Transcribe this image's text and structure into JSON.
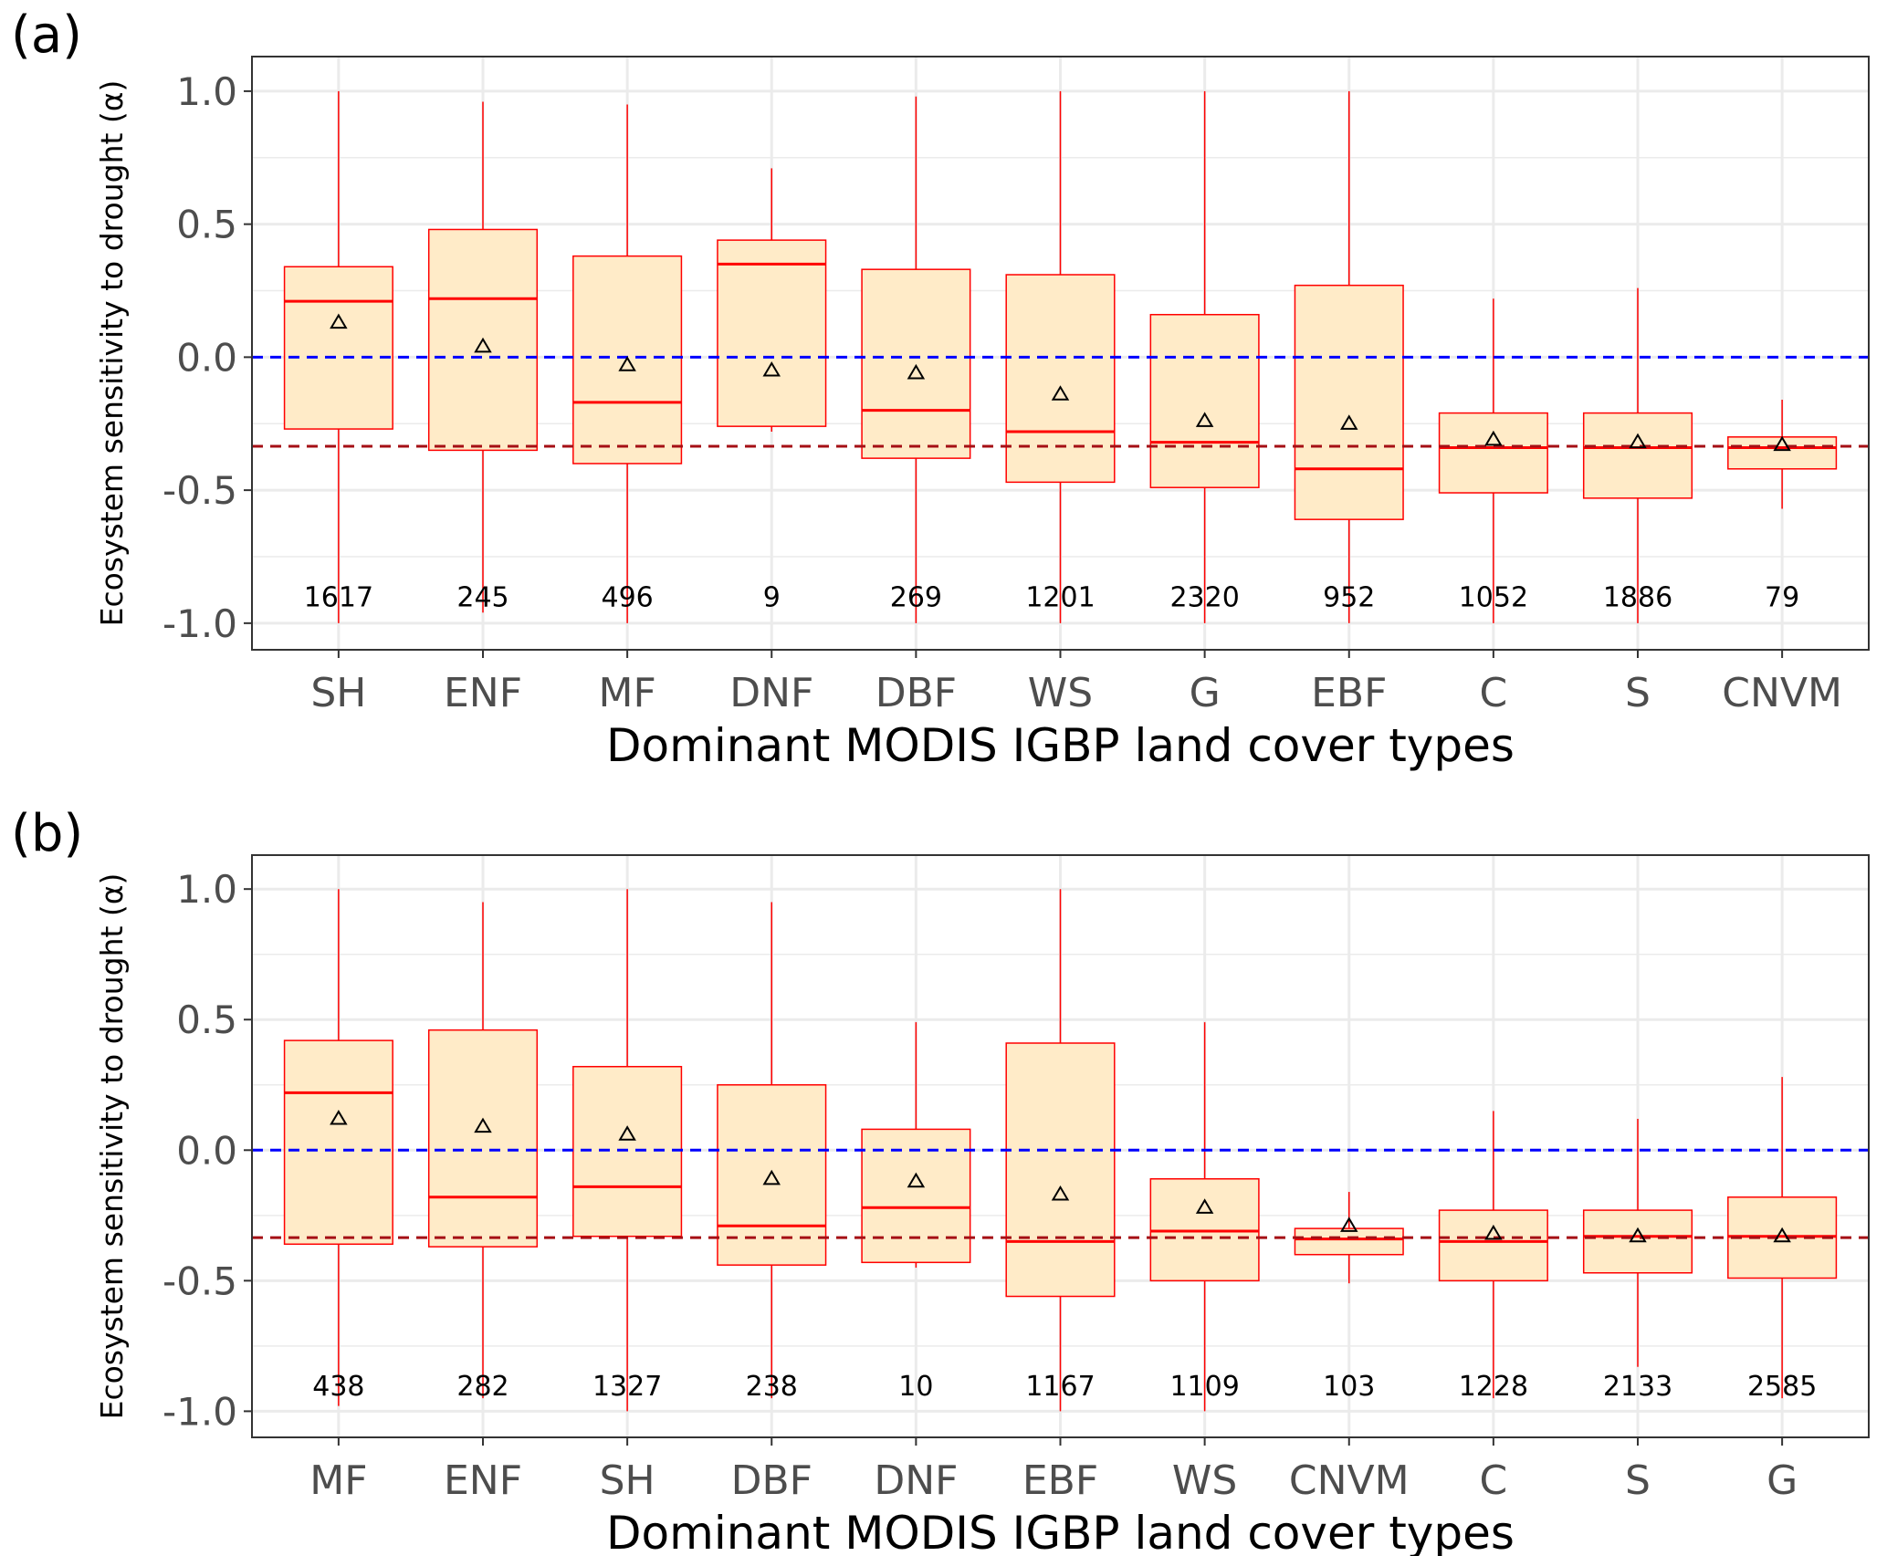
{
  "chart_data": [
    {
      "type": "box",
      "panel_label": "(a)",
      "xlabel": "Dominant MODIS IGBP land cover types",
      "ylabel": "Ecosystem sensitivity to drought (α)",
      "ylim": [
        -1.1,
        1.13
      ],
      "yticks": [
        1.0,
        0.5,
        0.0,
        -0.5,
        -1.0
      ],
      "ytick_labels": [
        "1.0",
        "0.5",
        "0.0",
        "-0.5",
        "-1.0"
      ],
      "reference_lines": [
        {
          "y": 0.0,
          "color": "#0000ff",
          "style": "dashed"
        },
        {
          "y": -0.335,
          "color": "#a50f15",
          "style": "dashed"
        }
      ],
      "grid": true,
      "categories": [
        "SH",
        "ENF",
        "MF",
        "DNF",
        "DBF",
        "WS",
        "G",
        "EBF",
        "C",
        "S",
        "CNVM"
      ],
      "counts": [
        "1617",
        "245",
        "496",
        "9",
        "269",
        "1201",
        "2320",
        "952",
        "1052",
        "1886",
        "79"
      ],
      "boxes": [
        {
          "min": -1.0,
          "q1": -0.27,
          "median": 0.21,
          "q3": 0.34,
          "max": 1.0,
          "mean": 0.13
        },
        {
          "min": -0.96,
          "q1": -0.35,
          "median": 0.22,
          "q3": 0.48,
          "max": 0.96,
          "mean": 0.04
        },
        {
          "min": -1.0,
          "q1": -0.4,
          "median": -0.17,
          "q3": 0.38,
          "max": 0.95,
          "mean": -0.03
        },
        {
          "min": -0.28,
          "q1": -0.26,
          "median": 0.35,
          "q3": 0.44,
          "max": 0.71,
          "mean": -0.05
        },
        {
          "min": -1.0,
          "q1": -0.38,
          "median": -0.2,
          "q3": 0.33,
          "max": 0.98,
          "mean": -0.06
        },
        {
          "min": -1.0,
          "q1": -0.47,
          "median": -0.28,
          "q3": 0.31,
          "max": 1.0,
          "mean": -0.14
        },
        {
          "min": -1.0,
          "q1": -0.49,
          "median": -0.32,
          "q3": 0.16,
          "max": 1.0,
          "mean": -0.24
        },
        {
          "min": -1.0,
          "q1": -0.61,
          "median": -0.42,
          "q3": 0.27,
          "max": 1.0,
          "mean": -0.25
        },
        {
          "min": -1.0,
          "q1": -0.51,
          "median": -0.34,
          "q3": -0.21,
          "max": 0.22,
          "mean": -0.31
        },
        {
          "min": -1.0,
          "q1": -0.53,
          "median": -0.34,
          "q3": -0.21,
          "max": 0.26,
          "mean": -0.32
        },
        {
          "min": -0.57,
          "q1": -0.42,
          "median": -0.34,
          "q3": -0.3,
          "max": -0.16,
          "mean": -0.33
        }
      ]
    },
    {
      "type": "box",
      "panel_label": "(b)",
      "xlabel": "Dominant MODIS IGBP land cover types",
      "ylabel": "Ecosystem sensitivity to drought (α)",
      "ylim": [
        -1.1,
        1.13
      ],
      "yticks": [
        1.0,
        0.5,
        0.0,
        -0.5,
        -1.0
      ],
      "ytick_labels": [
        "1.0",
        "0.5",
        "0.0",
        "-0.5",
        "-1.0"
      ],
      "reference_lines": [
        {
          "y": 0.0,
          "color": "#0000ff",
          "style": "dashed"
        },
        {
          "y": -0.335,
          "color": "#a50f15",
          "style": "dashed"
        }
      ],
      "grid": true,
      "categories": [
        "MF",
        "ENF",
        "SH",
        "DBF",
        "DNF",
        "EBF",
        "WS",
        "CNVM",
        "C",
        "S",
        "G"
      ],
      "counts": [
        "438",
        "282",
        "1327",
        "238",
        "10",
        "1167",
        "1109",
        "103",
        "1228",
        "2133",
        "2585"
      ],
      "boxes": [
        {
          "min": -0.98,
          "q1": -0.36,
          "median": 0.22,
          "q3": 0.42,
          "max": 1.0,
          "mean": 0.12
        },
        {
          "min": -0.95,
          "q1": -0.37,
          "median": -0.18,
          "q3": 0.46,
          "max": 0.95,
          "mean": 0.09
        },
        {
          "min": -1.0,
          "q1": -0.33,
          "median": -0.14,
          "q3": 0.32,
          "max": 1.0,
          "mean": 0.06
        },
        {
          "min": -0.95,
          "q1": -0.44,
          "median": -0.29,
          "q3": 0.25,
          "max": 0.95,
          "mean": -0.11
        },
        {
          "min": -0.45,
          "q1": -0.43,
          "median": -0.22,
          "q3": 0.08,
          "max": 0.49,
          "mean": -0.12
        },
        {
          "min": -1.0,
          "q1": -0.56,
          "median": -0.35,
          "q3": 0.41,
          "max": 1.0,
          "mean": -0.17
        },
        {
          "min": -1.0,
          "q1": -0.5,
          "median": -0.31,
          "q3": -0.11,
          "max": 0.49,
          "mean": -0.22
        },
        {
          "min": -0.51,
          "q1": -0.4,
          "median": -0.34,
          "q3": -0.3,
          "max": -0.16,
          "mean": -0.29
        },
        {
          "min": -0.95,
          "q1": -0.5,
          "median": -0.35,
          "q3": -0.23,
          "max": 0.15,
          "mean": -0.32
        },
        {
          "min": -0.83,
          "q1": -0.47,
          "median": -0.33,
          "q3": -0.23,
          "max": 0.12,
          "mean": -0.33
        },
        {
          "min": -0.95,
          "q1": -0.49,
          "median": -0.33,
          "q3": -0.18,
          "max": 0.28,
          "mean": -0.33
        }
      ]
    }
  ],
  "colors": {
    "box_fill": "#ffebc8",
    "box_line": "#ff0000",
    "zero_line": "#0000ff",
    "ref_line": "#a50f15",
    "grid": "#ebebeb"
  }
}
